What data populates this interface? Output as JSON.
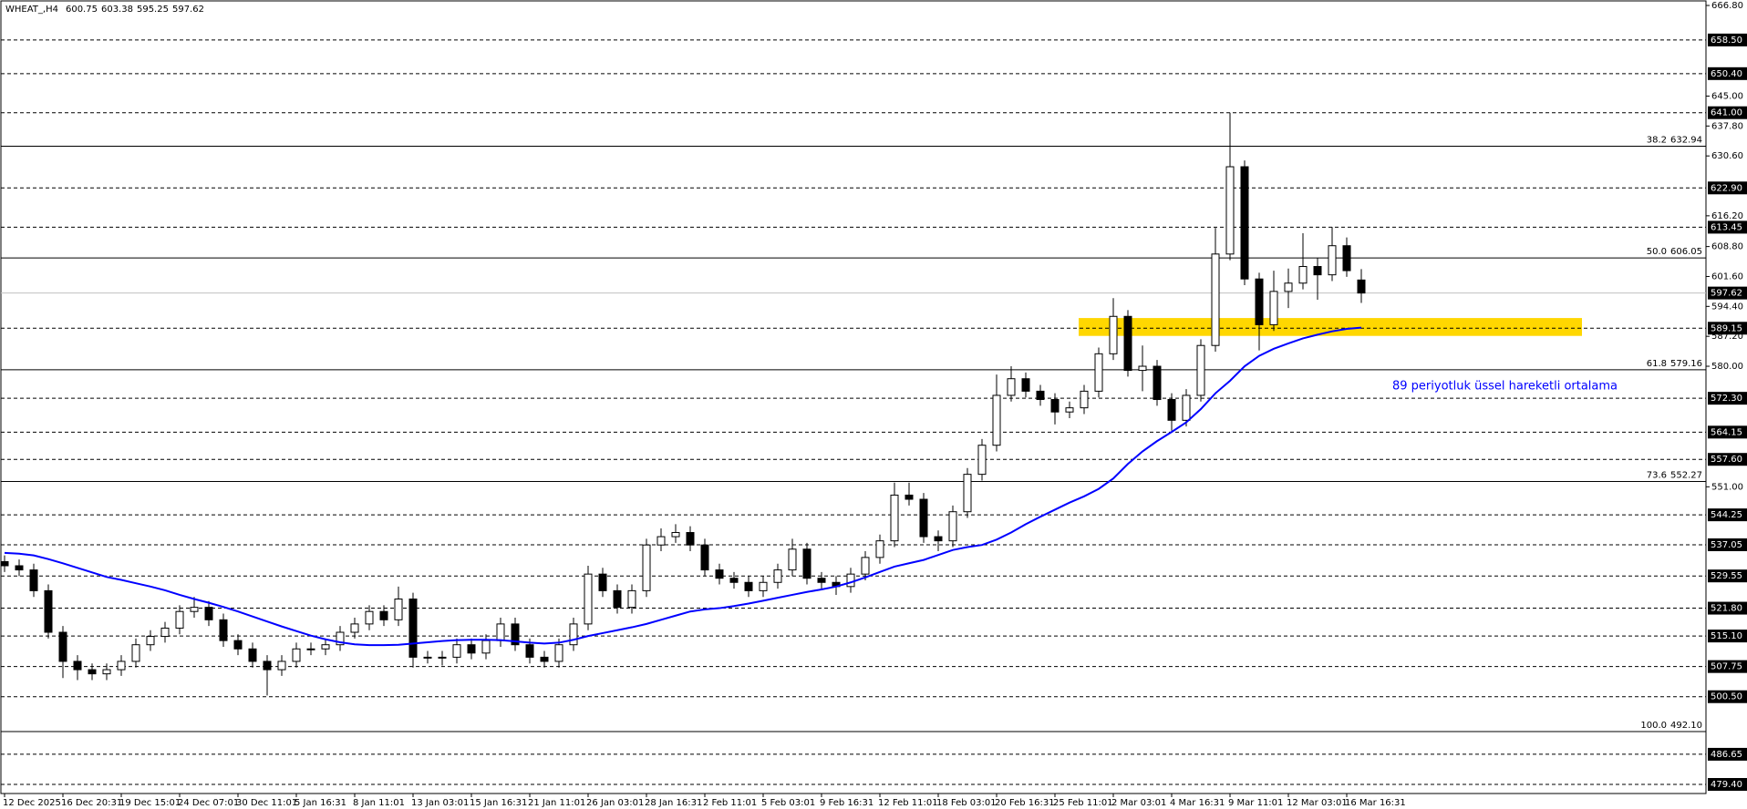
{
  "chart_data": {
    "type": "candlestick",
    "title": "WHEAT_,H4",
    "categories": [
      "12 Dec 2025",
      null,
      null,
      null,
      "16 Dec 20:31",
      null,
      null,
      null,
      "19 Dec 15:01",
      null,
      null,
      null,
      "24 Dec 07:01",
      null,
      null,
      null,
      "30 Dec 11:01",
      null,
      null,
      null,
      "5 Jan 16:31",
      null,
      null,
      null,
      "8 Jan 11:01",
      null,
      null,
      null,
      "13 Jan 03:01",
      null,
      null,
      null,
      "15 Jan 16:31",
      null,
      null,
      null,
      "21 Jan 11:01",
      null,
      null,
      null,
      "26 Jan 03:01",
      null,
      null,
      null,
      "28 Jan 16:31",
      null,
      null,
      null,
      "2 Feb 11:01",
      null,
      null,
      null,
      "5 Feb 03:01",
      null,
      null,
      null,
      "9 Feb 16:31",
      null,
      null,
      null,
      "12 Feb 11:01",
      null,
      null,
      null,
      "18 Feb 03:01",
      null,
      null,
      null,
      "20 Feb 16:31",
      null,
      null,
      null,
      "25 Feb 11:01",
      null,
      null,
      null,
      "2 Mar 03:01",
      null,
      null,
      null,
      "4 Mar 16:31",
      null,
      null,
      null,
      "9 Mar 11:01",
      null,
      null,
      null,
      "12 Mar 03:01",
      null,
      null,
      null,
      "16 Mar 16:31",
      null
    ],
    "open": [
      533,
      532,
      531,
      526,
      516,
      509,
      507,
      506,
      507,
      509,
      513,
      515,
      517,
      521,
      522,
      519,
      514,
      512,
      509,
      507,
      509,
      512,
      512,
      513,
      516,
      518,
      521,
      519,
      524,
      510,
      510,
      510,
      513,
      511,
      514,
      518,
      513,
      510,
      509,
      513,
      518,
      530,
      526,
      522,
      526,
      537,
      539,
      540,
      537,
      531,
      529,
      528,
      526,
      528,
      531,
      536,
      529,
      528,
      527,
      530,
      534,
      538,
      549,
      548,
      539,
      538,
      545,
      554,
      561,
      573,
      577,
      574,
      572,
      569,
      570,
      574,
      583,
      592,
      579,
      580,
      572,
      567,
      573,
      585,
      607,
      628,
      601,
      590,
      598,
      600,
      604,
      602,
      609,
      600.75
    ],
    "high": [
      534.5,
      533.5,
      532.5,
      527.5,
      517.5,
      510.5,
      508.5,
      508.5,
      510.5,
      514.5,
      516.5,
      518.5,
      522.5,
      524.5,
      523.5,
      520.5,
      515.5,
      513.5,
      510.5,
      510.5,
      513.5,
      513.5,
      514.5,
      517.5,
      519.5,
      522.5,
      522.5,
      527,
      525.5,
      511.5,
      511.5,
      514.5,
      514.5,
      515.5,
      519.5,
      519.5,
      514.5,
      511.5,
      514.5,
      519.5,
      532,
      531.5,
      527.5,
      527.5,
      538.5,
      541,
      542,
      541.5,
      538.5,
      532.5,
      530.5,
      529.5,
      529.5,
      532.5,
      538.5,
      537.5,
      530.5,
      529.5,
      531.5,
      535.5,
      539.5,
      552,
      552,
      549.5,
      540.5,
      546.5,
      555.5,
      562.5,
      578,
      580,
      578.5,
      575.5,
      573.5,
      571.5,
      575.5,
      584.5,
      596.4,
      593.5,
      585,
      581.5,
      573.5,
      574.5,
      586.5,
      613.3,
      641,
      629.5,
      602.5,
      603,
      603.5,
      612,
      606,
      613.5,
      611,
      603.38
    ],
    "low": [
      530.5,
      529.5,
      524.5,
      514.5,
      505,
      504.5,
      504.5,
      504.5,
      505.5,
      507.5,
      511.5,
      513.5,
      515.5,
      519.5,
      517.5,
      512.5,
      510.5,
      507.5,
      500.8,
      505.5,
      507.5,
      510.5,
      510.5,
      511.5,
      514.5,
      516.5,
      517.5,
      517.5,
      507.5,
      508.5,
      508,
      508.5,
      509.5,
      509.5,
      512.5,
      511.5,
      508.5,
      507.5,
      507.5,
      511.5,
      516.5,
      524.5,
      520.5,
      520.5,
      524.5,
      535.5,
      537.5,
      535.5,
      529.5,
      527.5,
      526.5,
      524.5,
      524.5,
      526.5,
      529.5,
      527.5,
      526.5,
      525,
      525.5,
      528.5,
      532.5,
      536.5,
      546.5,
      537.5,
      535.5,
      536.5,
      543.5,
      552.5,
      559.5,
      571.5,
      572.5,
      570.5,
      566,
      567.5,
      568.5,
      572.5,
      581.5,
      577.5,
      574,
      570.5,
      564.5,
      565.5,
      571.5,
      583.5,
      605.5,
      599.5,
      583.8,
      588.5,
      594,
      598.5,
      596,
      600.5,
      601.5,
      595.25
    ],
    "close": [
      532,
      531,
      526,
      516,
      509,
      507,
      506,
      507,
      509,
      513,
      515,
      517,
      521,
      522,
      519,
      514,
      512,
      509,
      507,
      509,
      512,
      512,
      513,
      516,
      518,
      521,
      519,
      524,
      510,
      510,
      510,
      513,
      511,
      514,
      518,
      513,
      510,
      509,
      513,
      518,
      530,
      526,
      522,
      526,
      537,
      539,
      540,
      537,
      531,
      529,
      528,
      526,
      528,
      531,
      536,
      529,
      528,
      527,
      530,
      534,
      538,
      549,
      548,
      539,
      538,
      545,
      554,
      561,
      573,
      577,
      574,
      572,
      569,
      570,
      574,
      583,
      592,
      579,
      580,
      572,
      567,
      573,
      585,
      607,
      628,
      601,
      590,
      598,
      600,
      604,
      602,
      609,
      603,
      597.62
    ],
    "series": [
      {
        "name": "89 periyotluk üssel hareketli ortalama",
        "color": "#0000ff",
        "values": [
          535.1,
          534.9,
          534.5,
          533.6,
          532.6,
          531.5,
          530.4,
          529.3,
          528.6,
          527.8,
          527,
          526.1,
          525,
          524,
          523.1,
          522.1,
          521,
          519.8,
          518.6,
          517.4,
          516.3,
          515.2,
          514.3,
          513.6,
          513.1,
          512.9,
          512.9,
          513,
          513.3,
          513.6,
          513.9,
          514.1,
          514.2,
          514.2,
          514.1,
          513.8,
          513.5,
          513.3,
          513.5,
          514.2,
          515.1,
          515.8,
          516.5,
          517.2,
          518,
          519,
          520,
          521,
          521.5,
          521.8,
          522.3,
          522.9,
          523.6,
          524.3,
          525,
          525.7,
          526.3,
          527,
          528,
          529.2,
          530.5,
          531.8,
          532.6,
          533.4,
          534.6,
          535.8,
          536.5,
          537,
          538.3,
          540,
          542,
          543.8,
          545.5,
          547.2,
          548.7,
          550.5,
          553,
          556.5,
          559.5,
          562,
          564.2,
          566.5,
          569.7,
          573.5,
          576.5,
          580,
          582.5,
          584.2,
          585.5,
          586.7,
          587.6,
          588.4,
          589,
          589.3
        ]
      }
    ],
    "ylim": [
      479.4,
      666.8
    ],
    "yticks": [
      {
        "value": 666.8,
        "label": "666.80"
      },
      {
        "value": 645,
        "label": "645.00"
      },
      {
        "value": 637.8,
        "label": "637.80"
      },
      {
        "value": 630.6,
        "label": "630.60"
      },
      {
        "value": 616.2,
        "label": "616.20"
      },
      {
        "value": 608.8,
        "label": "608.80"
      },
      {
        "value": 601.6,
        "label": "601.60"
      },
      {
        "value": 594.4,
        "label": "594.40"
      },
      {
        "value": 587.2,
        "label": "587.20"
      },
      {
        "value": 580,
        "label": "580.00"
      },
      {
        "value": 551,
        "label": "551.00"
      }
    ],
    "levels": [
      {
        "value": 658.5,
        "label": "658.50"
      },
      {
        "value": 650.4,
        "label": "650.40"
      },
      {
        "value": 641,
        "label": "641.00"
      },
      {
        "value": 622.9,
        "label": "622.90"
      },
      {
        "value": 613.45,
        "label": "613.45"
      },
      {
        "value": 589.15,
        "label": "589.15"
      },
      {
        "value": 572.3,
        "label": "572.30"
      },
      {
        "value": 564.15,
        "label": "564.15"
      },
      {
        "value": 557.6,
        "label": "557.60"
      },
      {
        "value": 544.25,
        "label": "544.25"
      },
      {
        "value": 537.05,
        "label": "537.05"
      },
      {
        "value": 529.55,
        "label": "529.55"
      },
      {
        "value": 521.8,
        "label": "521.80"
      },
      {
        "value": 515.1,
        "label": "515.10"
      },
      {
        "value": 507.75,
        "label": "507.75"
      },
      {
        "value": 500.5,
        "label": "500.50"
      },
      {
        "value": 486.65,
        "label": "486.65"
      },
      {
        "value": 479.4,
        "label": "479.40"
      }
    ],
    "fibonacci": [
      {
        "ratio": "38.2",
        "value": 632.94
      },
      {
        "ratio": "50.0",
        "value": 606.05
      },
      {
        "ratio": "61.8",
        "value": 579.16
      },
      {
        "ratio": "73.6",
        "value": 552.27
      },
      {
        "ratio": "100.0",
        "value": 492.1,
        "label": "492.10"
      }
    ],
    "zone": {
      "from": 587.3,
      "to": 591.6,
      "color": "#ffd700"
    }
  }
}
